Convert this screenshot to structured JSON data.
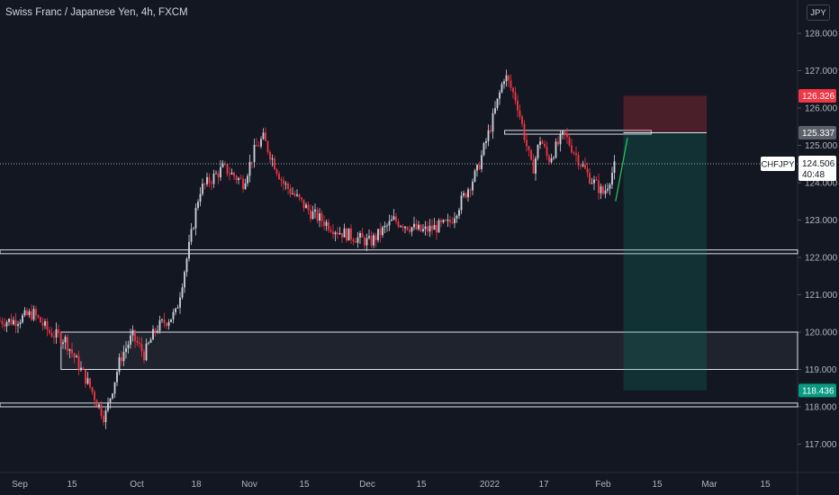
{
  "header": {
    "title": "Swiss Franc / Japanese Yen, 4h, FXCM",
    "currency_button": "JPY"
  },
  "chart_data": {
    "type": "candlestick",
    "symbol": "CHFJPY",
    "timeframe": "4h",
    "ylim": [
      116.5,
      128.5
    ],
    "y_ticks": [
      "117.000",
      "118.000",
      "119.000",
      "120.000",
      "121.000",
      "122.000",
      "123.000",
      "124.000",
      "125.000",
      "126.000",
      "127.000",
      "128.000"
    ],
    "x_ticks": [
      "Sep",
      "15",
      "Oct",
      "18",
      "Nov",
      "15",
      "Dec",
      "15",
      "2022",
      "17",
      "Feb",
      "15",
      "Mar",
      "15"
    ],
    "price_path": [
      [
        "Sep 1",
        120.3
      ],
      [
        "Sep 6",
        120.5
      ],
      [
        "Sep 10",
        120.0
      ],
      [
        "Sep 14",
        119.8
      ],
      [
        "Sep 20",
        118.6
      ],
      [
        "Sep 24",
        117.7
      ],
      [
        "Sep 28",
        119.3
      ],
      [
        "Oct 1",
        119.9
      ],
      [
        "Oct 4",
        119.4
      ],
      [
        "Oct 7",
        120.1
      ],
      [
        "Oct 12",
        120.5
      ],
      [
        "Oct 15",
        122.1
      ],
      [
        "Oct 18",
        123.8
      ],
      [
        "Oct 24",
        124.4
      ],
      [
        "Oct 29",
        124.0
      ],
      [
        "Nov 1",
        124.9
      ],
      [
        "Nov 3",
        125.2
      ],
      [
        "Nov 8",
        124.0
      ],
      [
        "Nov 15",
        123.2
      ],
      [
        "Nov 22",
        122.7
      ],
      [
        "Nov 30",
        122.4
      ],
      [
        "Dec 6",
        123.0
      ],
      [
        "Dec 13",
        122.7
      ],
      [
        "Dec 20",
        122.9
      ],
      [
        "Dec 27",
        124.3
      ],
      [
        "Dec 31",
        125.7
      ],
      [
        "Jan 3",
        126.9
      ],
      [
        "Jan 6",
        126.2
      ],
      [
        "Jan 10",
        124.3
      ],
      [
        "Jan 12",
        125.2
      ],
      [
        "Jan 14",
        124.6
      ],
      [
        "Jan 18",
        125.3
      ],
      [
        "Jan 24",
        124.2
      ],
      [
        "Jan 28",
        123.7
      ],
      [
        "Jan 31",
        124.5
      ]
    ],
    "last_price": {
      "symbol": "CHFJPY",
      "value": "124.506",
      "countdown": "40:48"
    },
    "price_labels": [
      {
        "value": "126.326",
        "color": "#f23645"
      },
      {
        "value": "125.337",
        "color": "#5d606b"
      },
      {
        "value": "118.436",
        "color": "#089981"
      }
    ],
    "zones": [
      {
        "kind": "horizontal-level",
        "y": [
          122.1,
          122.2
        ]
      },
      {
        "kind": "demand-box",
        "y": [
          119.0,
          120.0
        ],
        "from": "Sep 13"
      },
      {
        "kind": "horizontal-level",
        "y": [
          118.0,
          118.1
        ]
      },
      {
        "kind": "resistance-box",
        "y": [
          125.3,
          125.4
        ],
        "from": "Jan 3",
        "to": "Feb 9"
      }
    ],
    "short_position": {
      "from": "Feb 2",
      "to": "Feb 23",
      "entry": 125.337,
      "stop": 126.326,
      "target": 118.436,
      "colors": {
        "stop_zone": "#f23645",
        "target_zone": "#089981"
      }
    },
    "trend_line": {
      "from": [
        "Jan 31",
        123.5
      ],
      "to": [
        "Feb 3",
        125.2
      ],
      "color": "#22c35e"
    },
    "colors": {
      "background": "#131722",
      "up": "#d1d4dc",
      "down": "#f23645",
      "axis_text": "#b2b5be"
    }
  }
}
